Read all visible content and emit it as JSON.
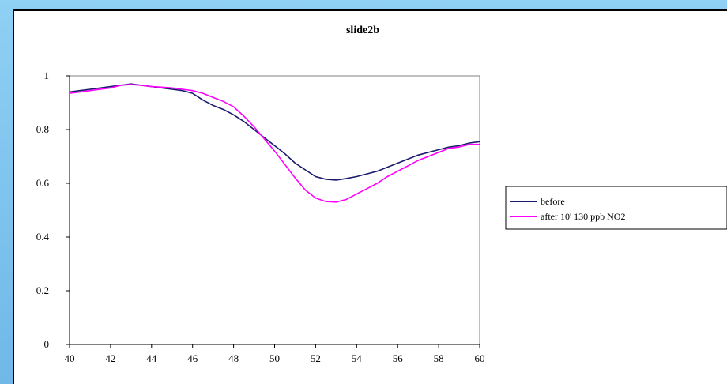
{
  "chart_data": {
    "type": "line",
    "title": "slide2b",
    "xlabel": "",
    "ylabel": "",
    "xlim": [
      40,
      60
    ],
    "ylim": [
      0,
      1
    ],
    "x_ticks": [
      "40",
      "42",
      "44",
      "46",
      "48",
      "50",
      "52",
      "54",
      "56",
      "58",
      "60"
    ],
    "y_ticks": [
      "0",
      "0.2",
      "0.4",
      "0.6",
      "0.8",
      "1"
    ],
    "grid": false,
    "legend_position": "right",
    "series": [
      {
        "name": "before",
        "color": "#1a1a6e",
        "x": [
          40,
          40.5,
          41,
          41.5,
          42,
          42.5,
          43,
          43.5,
          44,
          44.5,
          45,
          45.5,
          46,
          46.5,
          47,
          47.5,
          48,
          48.5,
          49,
          49.5,
          50,
          50.5,
          51,
          51.5,
          52,
          52.5,
          53,
          53.5,
          54,
          54.5,
          55,
          55.5,
          56,
          56.5,
          57,
          57.5,
          58,
          58.5,
          59,
          59.5,
          60
        ],
        "y": [
          0.94,
          0.945,
          0.95,
          0.955,
          0.96,
          0.965,
          0.97,
          0.965,
          0.96,
          0.955,
          0.95,
          0.945,
          0.935,
          0.91,
          0.89,
          0.875,
          0.855,
          0.83,
          0.8,
          0.77,
          0.74,
          0.71,
          0.675,
          0.65,
          0.625,
          0.615,
          0.612,
          0.618,
          0.625,
          0.635,
          0.645,
          0.66,
          0.675,
          0.69,
          0.705,
          0.715,
          0.725,
          0.735,
          0.74,
          0.75,
          0.755
        ]
      },
      {
        "name": "after 10' 130 ppb NO2",
        "color": "#ff00ff",
        "x": [
          40,
          40.5,
          41,
          41.5,
          42,
          42.5,
          43,
          43.5,
          44,
          44.5,
          45,
          45.5,
          46,
          46.5,
          47,
          47.5,
          48,
          48.5,
          49,
          49.5,
          50,
          50.5,
          51,
          51.5,
          52,
          52.5,
          53,
          53.5,
          54,
          54.5,
          55,
          55.5,
          56,
          56.5,
          57,
          57.5,
          58,
          58.5,
          59,
          59.5,
          60
        ],
        "y": [
          0.935,
          0.94,
          0.945,
          0.95,
          0.955,
          0.965,
          0.968,
          0.965,
          0.96,
          0.958,
          0.955,
          0.95,
          0.945,
          0.935,
          0.92,
          0.905,
          0.885,
          0.85,
          0.81,
          0.765,
          0.72,
          0.67,
          0.62,
          0.575,
          0.545,
          0.532,
          0.53,
          0.54,
          0.56,
          0.58,
          0.6,
          0.625,
          0.645,
          0.665,
          0.685,
          0.7,
          0.715,
          0.73,
          0.735,
          0.745,
          0.745
        ]
      }
    ]
  }
}
